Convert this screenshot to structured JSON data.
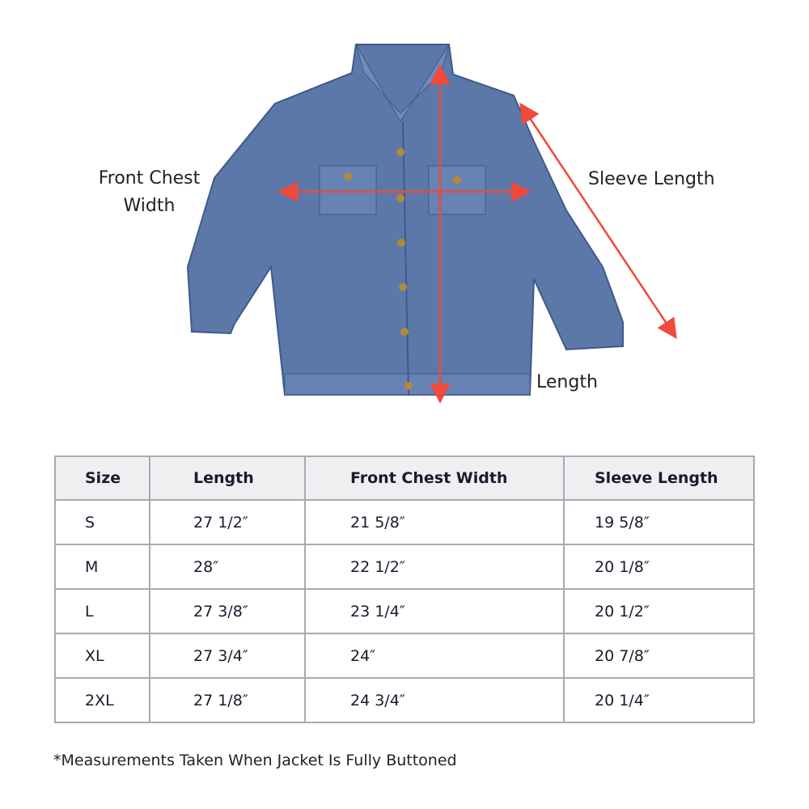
{
  "labels": {
    "front_chest_width": [
      "Front Chest",
      "Width"
    ],
    "sleeve_length": "Sleeve Length",
    "length": "Length"
  },
  "colors": {
    "arrow": "#f04a3a",
    "denim": "#5b78a8",
    "header_bg": "#efeff2",
    "border": "#a9a9b5"
  },
  "table": {
    "headers": [
      "Size",
      "Length",
      "Front Chest Width",
      "Sleeve Length"
    ],
    "rows": [
      [
        "S",
        "27 1/2″",
        "21 5/8″",
        "19 5/8″"
      ],
      [
        "M",
        "28″",
        "22 1/2″",
        "20 1/8″"
      ],
      [
        "L",
        "27 3/8″",
        "23 1/4″",
        "20 1/2″"
      ],
      [
        "XL",
        "27 3/4″",
        "24″",
        "20 7/8″"
      ],
      [
        "2XL",
        "27 1/8″",
        "24 3/4″",
        "20 1/4″"
      ]
    ]
  },
  "note": "*Measurements Taken When Jacket Is Fully Buttoned"
}
